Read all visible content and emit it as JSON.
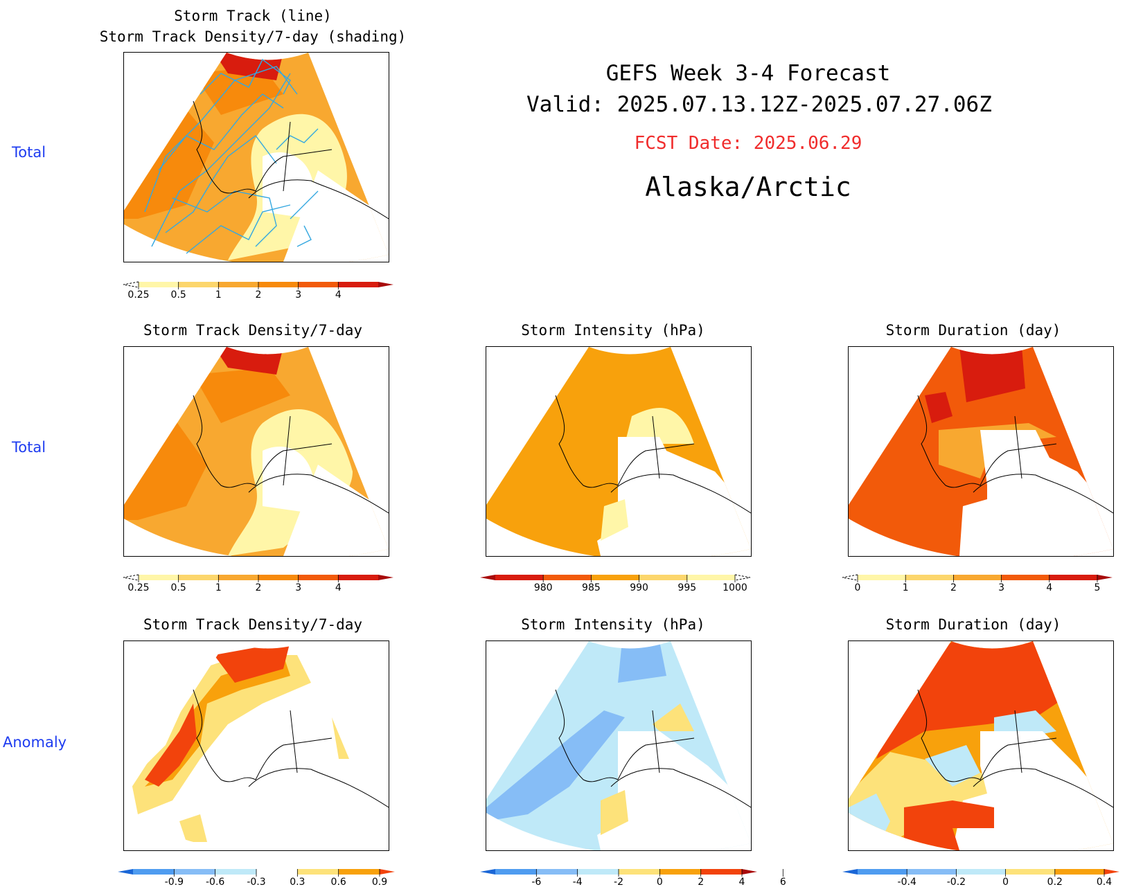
{
  "header": {
    "line1": "GEFS Week 3-4 Forecast",
    "line2": "Valid: 2025.07.13.12Z-2025.07.27.06Z",
    "fcst": "FCST Date: 2025.06.29",
    "region": "Alaska/Arctic"
  },
  "row_labels": [
    "Total",
    "Total",
    "Anomaly"
  ],
  "panels": {
    "p1": {
      "title1": "Storm Track (line)",
      "title2": "Storm Track Density/7-day (shading)"
    },
    "p2": {
      "title": "Storm Track Density/7-day"
    },
    "p3": {
      "title": "Storm Intensity (hPa)"
    },
    "p4": {
      "title": "Storm Duration (day)"
    },
    "p5": {
      "title": "Storm Track Density/7-day"
    },
    "p6": {
      "title": "Storm Intensity (hPa)"
    },
    "p7": {
      "title": "Storm Duration (day)"
    }
  },
  "colorbars": {
    "density": {
      "labels": [
        "0.25",
        "0.5",
        "1",
        "2",
        "3",
        "4"
      ],
      "colors": [
        "#fff6a8",
        "#fcd66c",
        "#f8a830",
        "#f78a0c",
        "#f25a0a",
        "#d81c0e",
        "#a80a0a"
      ]
    },
    "intensity": {
      "labels": [
        "980",
        "985",
        "990",
        "995",
        "1000"
      ],
      "colors": [
        "#a80a0a",
        "#d81c0e",
        "#f25a0a",
        "#f8a10c",
        "#fcd66c",
        "#fff6a8"
      ]
    },
    "duration": {
      "labels": [
        "0",
        "1",
        "2",
        "3",
        "4",
        "5"
      ],
      "colors": [
        "#fff6a8",
        "#fcd66c",
        "#f8a830",
        "#f25a0a",
        "#d81c0e",
        "#a80a0a"
      ]
    },
    "dens_anom": {
      "labels": [
        "-0.9",
        "-0.6",
        "-0.3",
        "0.3",
        "0.6",
        "0.9"
      ],
      "colors": [
        "#1a66d6",
        "#4f9cf0",
        "#86bdf6",
        "#bfe9f8",
        "#ffffff",
        "#fde27a",
        "#f8a10c",
        "#f2430c"
      ]
    },
    "int_anom": {
      "labels": [
        "-6",
        "-4",
        "-2",
        "0",
        "2",
        "4",
        "6"
      ],
      "colors": [
        "#1a66d6",
        "#4f9cf0",
        "#86bdf6",
        "#bfe9f8",
        "#fde27a",
        "#f8a10c",
        "#f2430c",
        "#a80a0a"
      ]
    },
    "dur_anom": {
      "labels": [
        "-0.4",
        "-0.2",
        "0",
        "0.2",
        "0.4"
      ],
      "colors": [
        "#1a66d6",
        "#4f9cf0",
        "#86bdf6",
        "#bfe9f8",
        "#fde27a",
        "#f8a10c",
        "#f2430c"
      ]
    }
  }
}
